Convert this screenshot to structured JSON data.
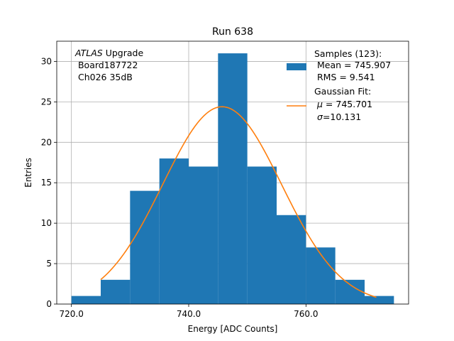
{
  "chart_data": {
    "type": "bar",
    "title": "Run 638",
    "xlabel": "Energy [ADC Counts]",
    "ylabel": "Entries",
    "xlim": [
      717.5,
      777.5
    ],
    "ylim": [
      0,
      32.5
    ],
    "grid": true,
    "bins": [
      {
        "x0": 720,
        "x1": 725,
        "count": 1
      },
      {
        "x0": 725,
        "x1": 730,
        "count": 3
      },
      {
        "x0": 730,
        "x1": 735,
        "count": 14
      },
      {
        "x0": 735,
        "x1": 740,
        "count": 18
      },
      {
        "x0": 740,
        "x1": 745,
        "count": 17
      },
      {
        "x0": 745,
        "x1": 750,
        "count": 31
      },
      {
        "x0": 750,
        "x1": 755,
        "count": 17
      },
      {
        "x0": 755,
        "x1": 760,
        "count": 11
      },
      {
        "x0": 760,
        "x1": 765,
        "count": 7
      },
      {
        "x0": 765,
        "x1": 770,
        "count": 3
      },
      {
        "x0": 770,
        "x1": 775,
        "count": 1
      }
    ],
    "fit": {
      "name": "Gaussian Fit",
      "mu": 745.701,
      "sigma": 10.131,
      "peak": 24.4,
      "x_start": 725,
      "x_end": 772
    },
    "xticks": [
      {
        "value": 720,
        "label": "720.0"
      },
      {
        "value": 740,
        "label": "740.0"
      },
      {
        "value": 760,
        "label": "760.0"
      }
    ],
    "yticks": [
      {
        "value": 0,
        "label": "0"
      },
      {
        "value": 5,
        "label": "5"
      },
      {
        "value": 10,
        "label": "10"
      },
      {
        "value": 15,
        "label": "15"
      },
      {
        "value": 20,
        "label": "20"
      },
      {
        "value": 25,
        "label": "25"
      },
      {
        "value": 30,
        "label": "30"
      }
    ],
    "annotation": {
      "experiment_italic": "ATLAS",
      "experiment_rest": " Upgrade",
      "line2": " Board187722",
      "line3": " Ch026 35dB"
    },
    "legend": {
      "position": "top-right",
      "samples": {
        "line1": "Samples (123):",
        "line2": " Mean = 745.907",
        "line3": " RMS = 9.541"
      },
      "fit": {
        "line1": "Gaussian Fit:",
        "mu_symbol": "μ",
        "mu_text": " = 745.701",
        "sigma_symbol": "σ",
        "sigma_text": "=10.131"
      }
    },
    "colors": {
      "bars": "#1f77b4",
      "fit": "#ff7f0e",
      "grid": "#b0b0b0",
      "axes": "#000000"
    }
  }
}
